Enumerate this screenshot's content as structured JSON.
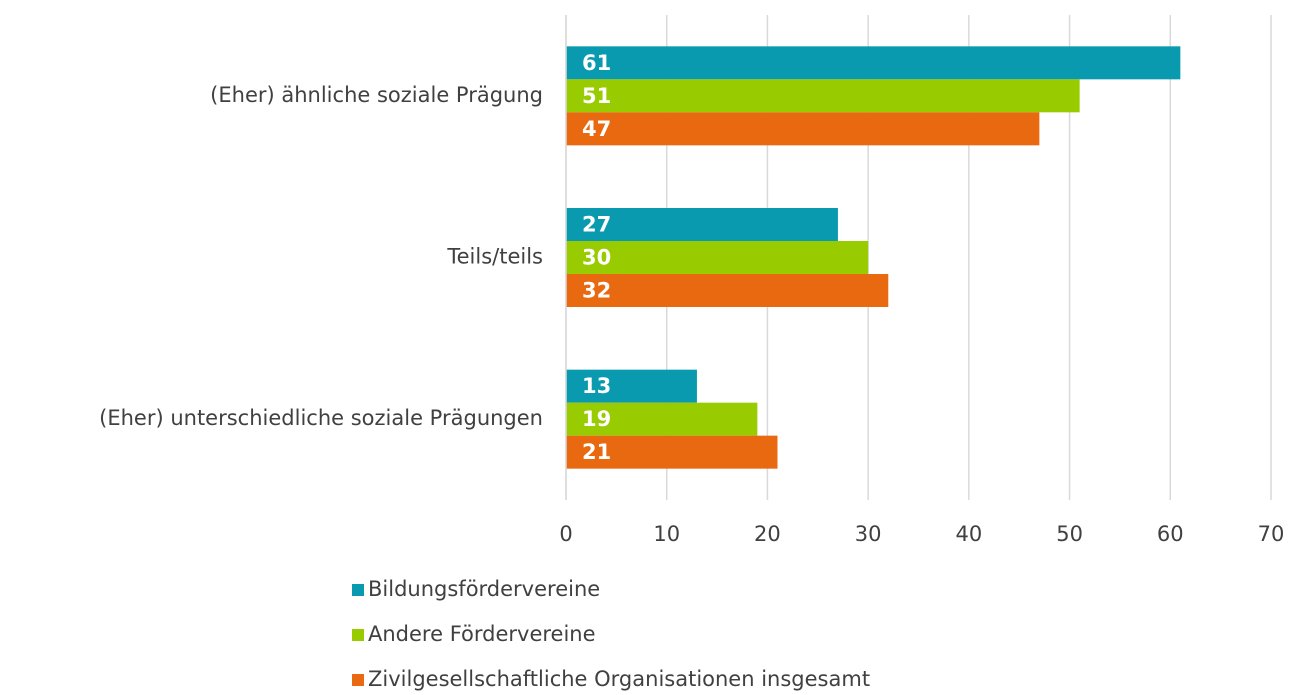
{
  "chart_data": {
    "type": "bar",
    "orientation": "horizontal",
    "categories": [
      "(Eher) ähnliche soziale Prägung",
      "Teils/teils",
      "(Eher) unterschiedliche soziale Prägungen"
    ],
    "series": [
      {
        "name": "Bildungsfördervereine",
        "color": "#0a9ab0",
        "values": [
          61,
          27,
          13
        ]
      },
      {
        "name": "Andere Fördervereine",
        "color": "#99cc00",
        "values": [
          51,
          30,
          19
        ]
      },
      {
        "name": "Zivilgesellschaftliche Organisationen insgesamt",
        "color": "#e8690f",
        "values": [
          47,
          32,
          21
        ]
      }
    ],
    "xlim": [
      0,
      70
    ],
    "xticks": [
      0,
      10,
      20,
      30,
      40,
      50,
      60,
      70
    ],
    "grid": true,
    "legend": "bottom"
  }
}
